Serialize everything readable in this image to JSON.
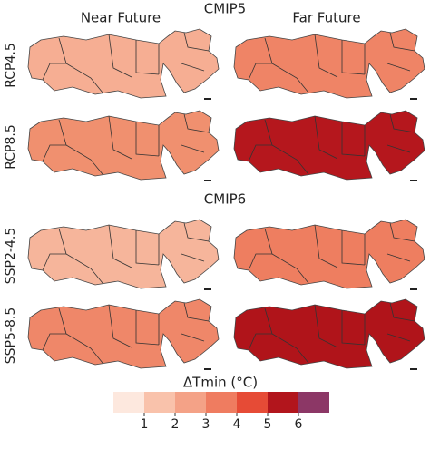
{
  "figure": {
    "groups": [
      {
        "title": "CMIP5",
        "rows": [
          "RCP4.5",
          "RCP8.5"
        ]
      },
      {
        "title": "CMIP6",
        "rows": [
          "SSP2-4.5",
          "SSP5-8.5"
        ]
      }
    ],
    "columns": [
      "Near Future",
      "Far Future"
    ],
    "colorbar": {
      "title": "ΔTmin (°C)",
      "ticks": [
        1,
        2,
        3,
        4,
        5,
        6
      ],
      "colors": [
        "#fde8de",
        "#f9c2ab",
        "#f4a287",
        "#ef7c60",
        "#e64b36",
        "#b2151c",
        "#8c3766"
      ]
    }
  }
}
